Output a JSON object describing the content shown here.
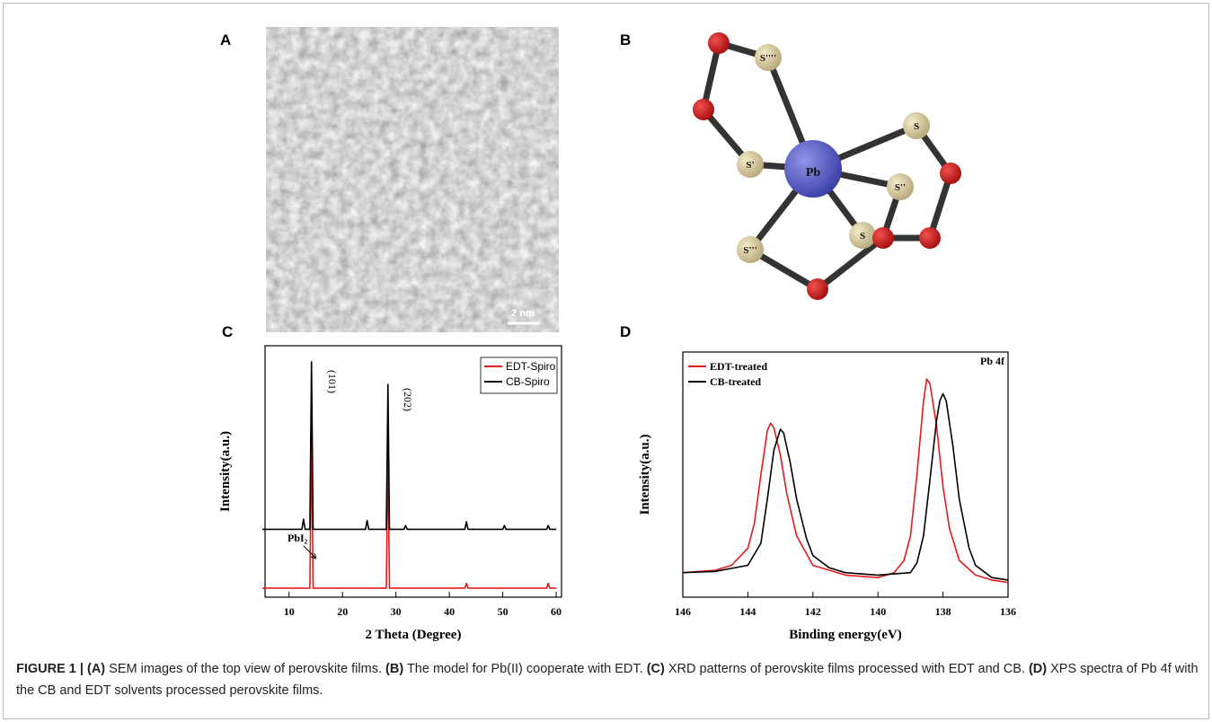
{
  "panels": {
    "A": {
      "label": "A",
      "scale_bar": "2 nm"
    },
    "B": {
      "label": "B",
      "atoms": [
        "Pb",
        "S''''",
        "S'",
        "S",
        "S''",
        "S",
        "S'''"
      ]
    },
    "C": {
      "label": "C"
    },
    "D": {
      "label": "D"
    }
  },
  "chart_data": [
    {
      "type": "line",
      "x_label": "2 Theta (Degree)",
      "y_label": "Intensity(a.u.)",
      "xlim": [
        5.5,
        61
      ],
      "xticks": [
        10,
        20,
        30,
        40,
        50,
        60
      ],
      "ylim": [
        0,
        100
      ],
      "legend": "upper right",
      "annotations": [
        "(101)",
        "(202)",
        "PbI₂"
      ],
      "x": [
        5,
        10,
        12.4,
        12.7,
        13.0,
        13.9,
        14.2,
        14.5,
        20,
        24.3,
        24.6,
        24.9,
        28.2,
        28.5,
        28.8,
        31.5,
        31.8,
        32.1,
        35,
        40,
        42.9,
        43.2,
        43.5,
        50,
        50.3,
        50.6,
        58.2,
        58.5,
        58.8,
        60
      ],
      "series": [
        {
          "name": "EDT-Spiro",
          "color": "#e31a1c",
          "values": [
            3.6,
            3.6,
            3.6,
            3.6,
            3.6,
            3.6,
            65,
            3.6,
            3.6,
            3.6,
            3.6,
            3.6,
            3.6,
            60,
            3.6,
            3.6,
            3.6,
            3.6,
            3.6,
            3.6,
            3.6,
            5.5,
            3.6,
            3.6,
            3.6,
            3.6,
            3.6,
            5.5,
            3.6,
            3.6
          ]
        },
        {
          "name": "CB-Spiro",
          "color": "#000000",
          "values": [
            27,
            27,
            27,
            31,
            27,
            27,
            93.6,
            27,
            27,
            27,
            30.5,
            27,
            27,
            84.6,
            27,
            27,
            28.5,
            27,
            27,
            27,
            27,
            30,
            27,
            27,
            28.5,
            27,
            27,
            28.5,
            27,
            27
          ]
        }
      ]
    },
    {
      "type": "line",
      "x_label": "Binding energy(eV)",
      "y_label": "Intensity(a.u.)",
      "xlim": [
        146,
        136
      ],
      "xticks": [
        146,
        144,
        142,
        140,
        138,
        136
      ],
      "ylim": [
        0,
        100
      ],
      "legend": "upper left",
      "annotations": [
        "Pb 4f"
      ],
      "series": [
        {
          "name": "EDT-treated",
          "color": "#e31a1c",
          "x": [
            146,
            145,
            144.5,
            144,
            143.8,
            143.6,
            143.4,
            143.3,
            143.2,
            143.0,
            142.8,
            142.5,
            142,
            141,
            140,
            139.5,
            139.2,
            139,
            138.8,
            138.6,
            138.5,
            138.4,
            138.2,
            138,
            137.8,
            137.5,
            137,
            136.5,
            136
          ],
          "values": [
            10,
            11,
            13,
            20,
            30,
            50,
            68,
            71,
            69,
            58,
            42,
            25,
            13,
            9,
            8,
            10,
            15,
            25,
            50,
            80,
            89,
            87,
            70,
            45,
            28,
            15,
            9,
            7,
            6
          ]
        },
        {
          "name": "CB-treated",
          "color": "#000000",
          "x": [
            146,
            145,
            144,
            143.6,
            143.4,
            143.2,
            143.0,
            142.9,
            142.7,
            142.5,
            142.2,
            142,
            141.5,
            141,
            140,
            139,
            138.8,
            138.6,
            138.4,
            138.2,
            138.1,
            138,
            137.9,
            137.7,
            137.5,
            137.2,
            137,
            136.5,
            136
          ],
          "values": [
            10,
            10.5,
            13,
            22,
            40,
            60,
            68.5,
            67,
            55,
            40,
            24,
            17,
            12,
            10,
            9,
            10,
            14,
            25,
            48,
            72,
            80,
            83,
            80,
            62,
            40,
            20,
            13,
            8,
            7
          ]
        }
      ]
    }
  ],
  "caption": {
    "figure": "FIGURE 1 |",
    "parts": [
      {
        "label": "(A)",
        "text": "SEM images of the top view of perovskite films."
      },
      {
        "label": "(B)",
        "text": "The model for Pb(II) cooperate with EDT."
      },
      {
        "label": "(C)",
        "text": "XRD patterns of perovskite films processed with EDT and CB."
      },
      {
        "label": "(D)",
        "text": "XPS spectra of Pb 4f with the CB and EDT solvents processed perovskite films."
      }
    ]
  }
}
